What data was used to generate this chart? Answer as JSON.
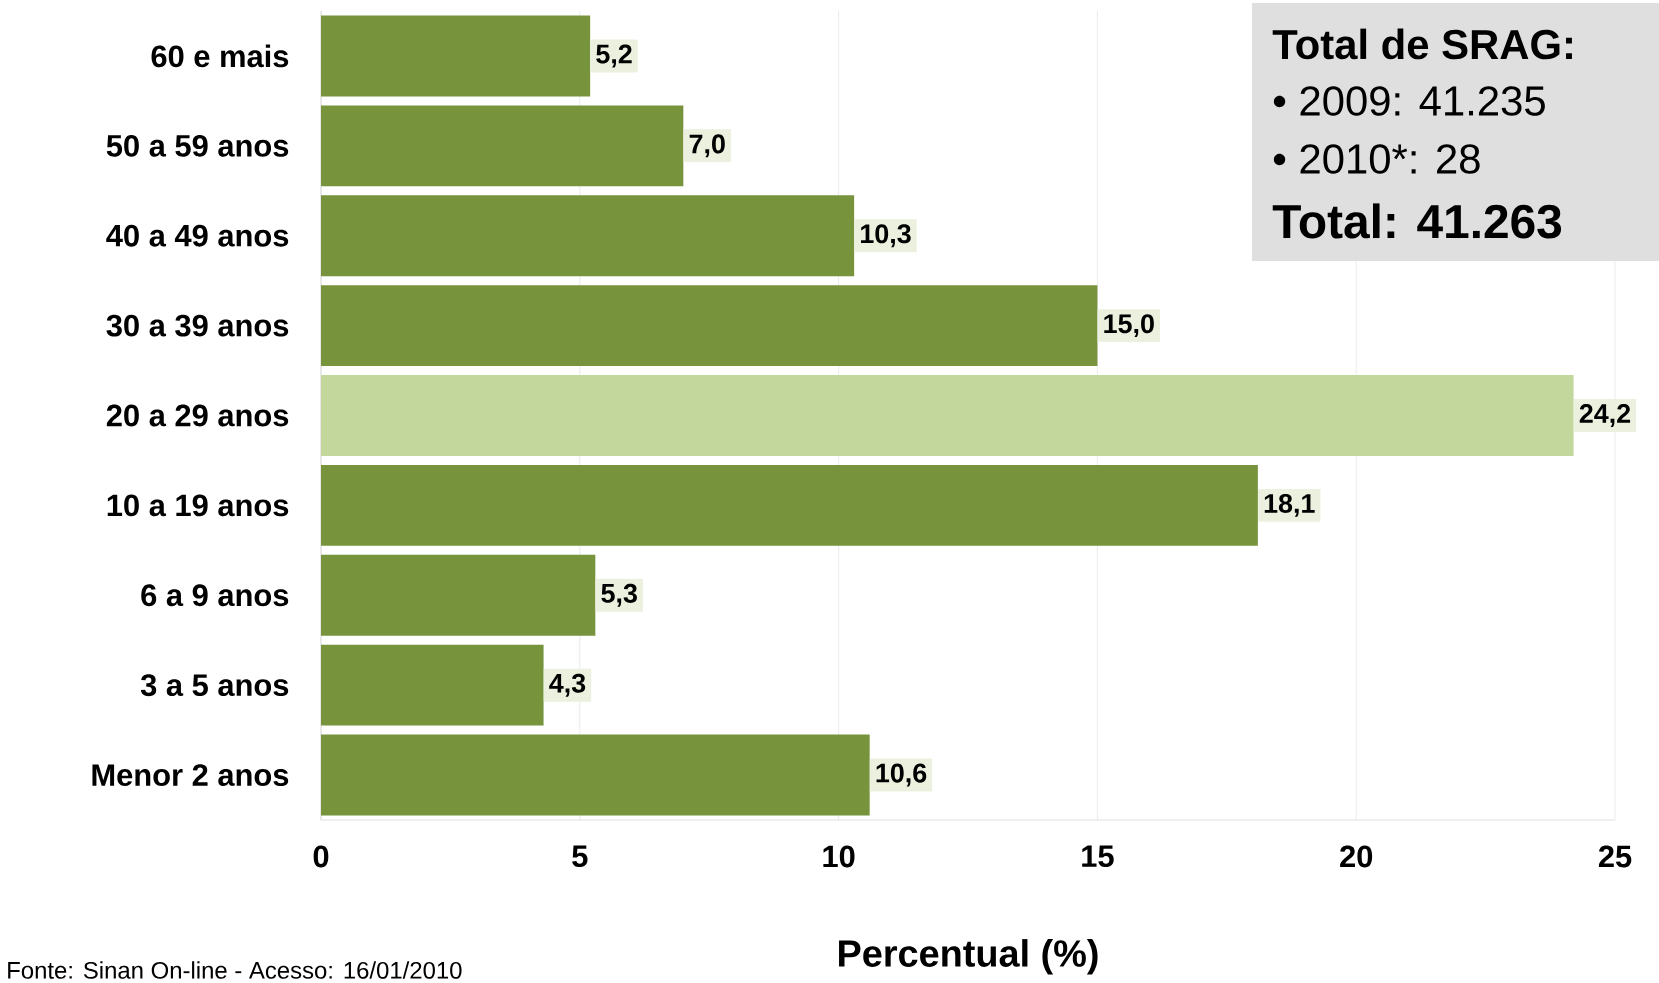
{
  "chart_data": {
    "type": "bar",
    "orientation": "horizontal",
    "categories": [
      "60 e mais",
      "50 a 59 anos",
      "40 a 49 anos",
      "30 a 39 anos",
      "20 a 29 anos",
      "10 a 19 anos",
      "6 a 9 anos",
      "3 a 5 anos",
      "Menor 2 anos"
    ],
    "values": [
      5.2,
      7.0,
      10.3,
      15.0,
      24.2,
      18.1,
      5.3,
      4.3,
      10.6
    ],
    "value_labels": [
      "5,2",
      "7,0",
      "10,3",
      "15,0",
      "24,2",
      "18,1",
      "5,3",
      "4,3",
      "10,6"
    ],
    "colors": [
      "#77933c",
      "#77933c",
      "#77933c",
      "#77933c",
      "#c3d69b",
      "#77933c",
      "#77933c",
      "#77933c",
      "#77933c"
    ],
    "xlim": [
      0,
      25
    ],
    "xticks": [
      0,
      5,
      10,
      15,
      20,
      25
    ],
    "grid": "x",
    "xlabel": "Percentual (%)",
    "annotations": [
      "Total de SRAG:",
      "• 2009: 41.235",
      "• 2010*: 28",
      "Total: 41.263",
      "Fonte: Sinan On-line - Acesso: 16/01/2010"
    ]
  }
}
